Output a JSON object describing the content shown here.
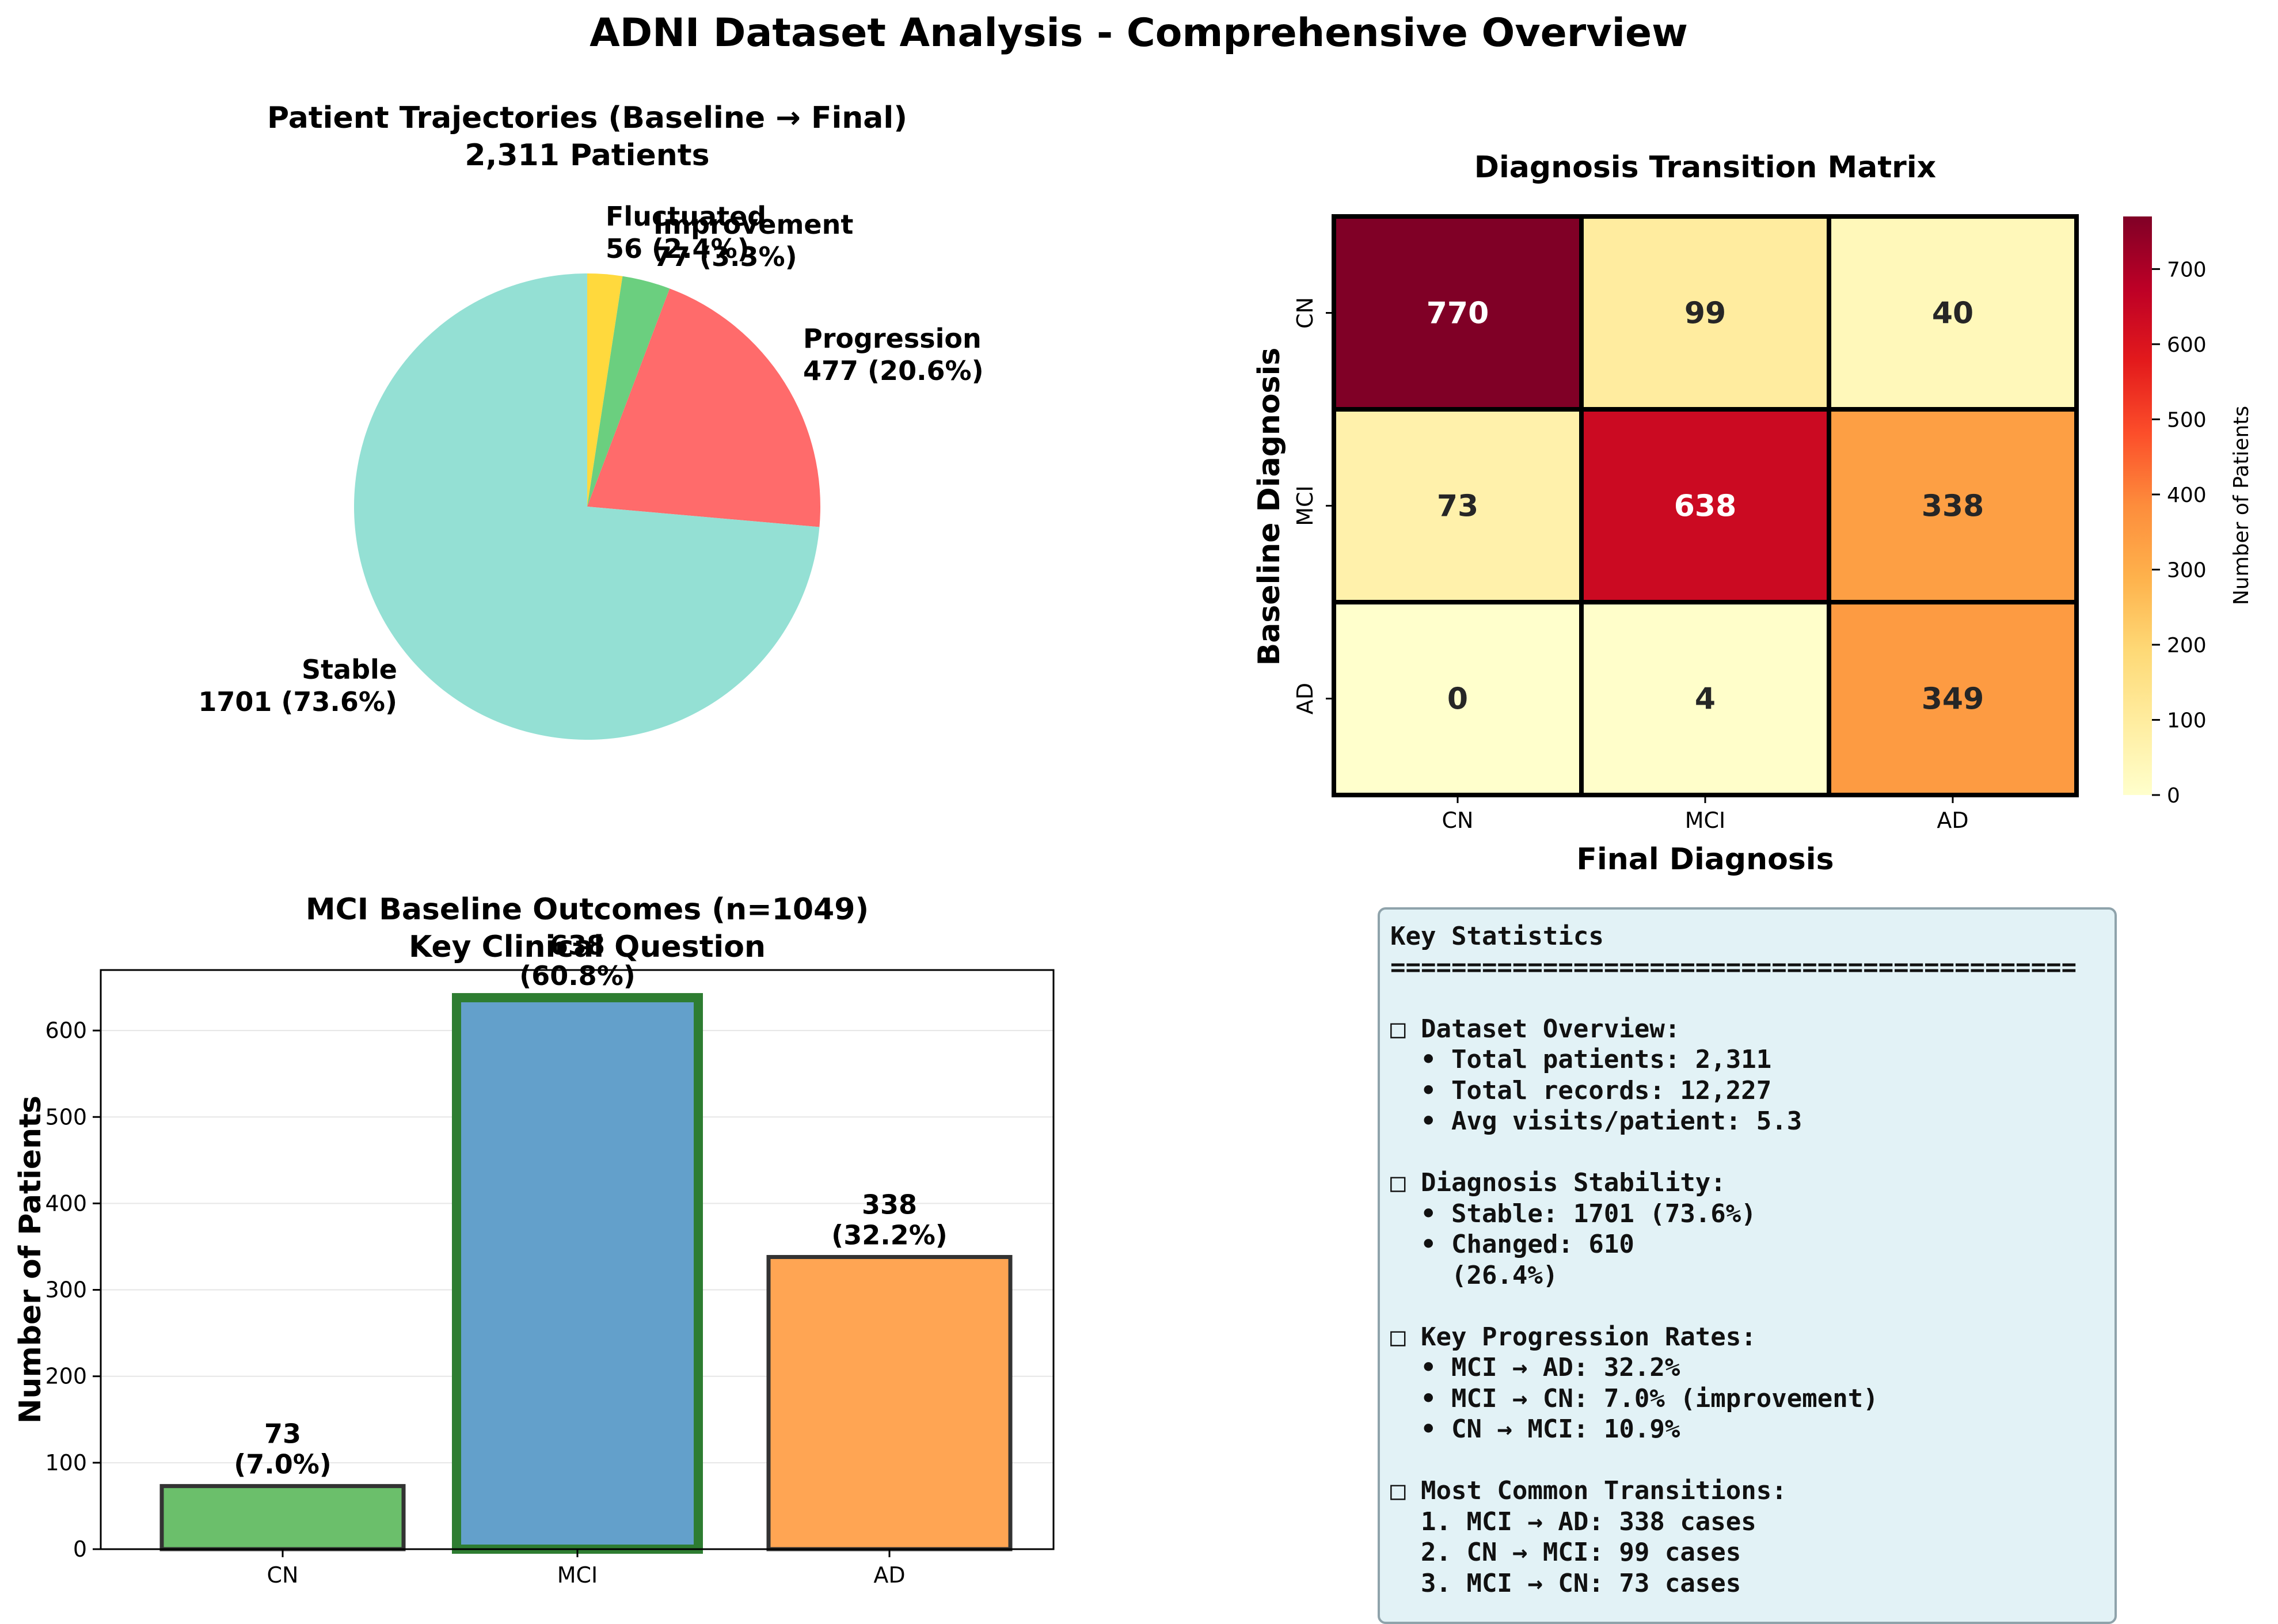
{
  "figure": {
    "suptitle": "ADNI Dataset Analysis - Comprehensive Overview"
  },
  "colors": {
    "stable": "#94e0d4",
    "progression": "#ff6b6b",
    "improvement": "#6bcf7f",
    "fluctuated": "#ffd93d",
    "bar_cn": "#6bbf6b",
    "bar_mci": "#63a0cb",
    "bar_ad": "#ffa553",
    "bar_mci_edge": "#2e7d32"
  },
  "chart_data": [
    {
      "type": "pie",
      "title": "Patient Trajectories (Baseline → Final)",
      "subtitle": "2,311 Patients",
      "slices": [
        {
          "label": "Stable",
          "value": 1701,
          "pct": "73.6%",
          "color": "#94e0d4"
        },
        {
          "label": "Progression",
          "value": 477,
          "pct": "20.6%",
          "color": "#ff6b6b"
        },
        {
          "label": "Improvement",
          "value": 77,
          "pct": "3.3%",
          "color": "#6bcf7f"
        },
        {
          "label": "Fluctuated",
          "value": 56,
          "pct": "2.4%",
          "color": "#ffd93d"
        }
      ]
    },
    {
      "type": "heatmap",
      "title": "Diagnosis Transition Matrix",
      "xlabel": "Final Diagnosis",
      "ylabel": "Baseline Diagnosis",
      "x_categories": [
        "CN",
        "MCI",
        "AD"
      ],
      "y_categories": [
        "CN",
        "MCI",
        "AD"
      ],
      "values": [
        [
          770,
          99,
          40
        ],
        [
          73,
          638,
          338
        ],
        [
          0,
          4,
          349
        ]
      ],
      "colorbar": {
        "label": "Number of Patients",
        "min": 0,
        "max": 770,
        "ticks": [
          0,
          100,
          200,
          300,
          400,
          500,
          600,
          700
        ]
      }
    },
    {
      "type": "bar",
      "title": "MCI Baseline Outcomes (n=1049)",
      "subtitle": "Key Clinical Question",
      "categories": [
        "CN",
        "MCI",
        "AD"
      ],
      "values": [
        73,
        638,
        338
      ],
      "value_labels": [
        "73\n(7.0%)",
        "638\n(60.8%)",
        "338\n(32.2%)"
      ],
      "xlabel": "",
      "ylabel": "Number of Patients",
      "ylim": [
        0,
        670
      ],
      "yticks": [
        0,
        100,
        200,
        300,
        400,
        500,
        600
      ],
      "grid": "y"
    }
  ],
  "stats": {
    "lines": [
      "Key Statistics",
      "=============================================",
      "",
      "□ Dataset Overview:",
      "  • Total patients: 2,311",
      "  • Total records: 12,227",
      "  • Avg visits/patient: 5.3",
      "",
      "□ Diagnosis Stability:",
      "  • Stable: 1701 (73.6%)",
      "  • Changed: 610",
      "    (26.4%)",
      "",
      "□ Key Progression Rates:",
      "  • MCI → AD: 32.2%",
      "  • MCI → CN: 7.0% (improvement)",
      "  • CN → MCI: 10.9%",
      "",
      "□ Most Common Transitions:",
      "  1. MCI → AD: 338 cases",
      "  2. CN → MCI: 99 cases",
      "  3. MCI → CN: 73 cases"
    ]
  }
}
